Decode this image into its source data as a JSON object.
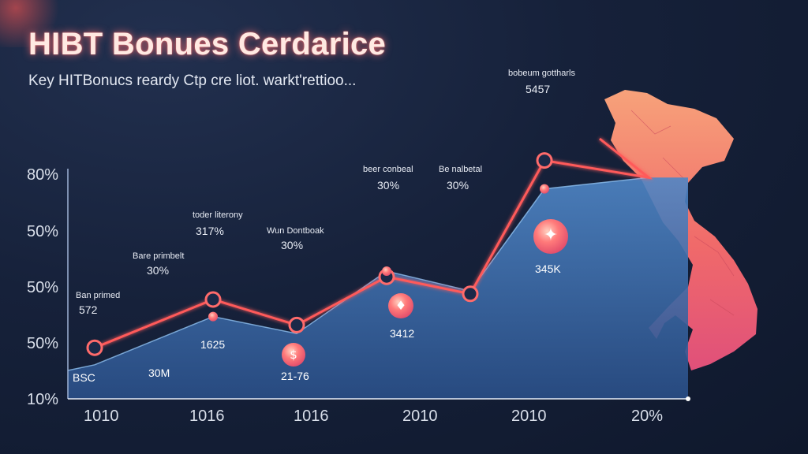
{
  "header": {
    "title": "HIBT Bonues Cerdarice",
    "subtitle": "Key HITBonucs reardy Ctp cre liot. warkt'rettioo..."
  },
  "colors": {
    "background": "#16213a",
    "area_fill": "#3d6fb0",
    "line": "#ff5a5a",
    "marker": "#ff7a7a",
    "map": "#f26d6d"
  },
  "icons": [
    "dollar-icon",
    "piggy-icon",
    "shield-icon",
    "map-of-vietnam-icon"
  ],
  "chart_data": {
    "type": "area",
    "x_tick_labels": [
      "1010",
      "1016",
      "1016",
      "2010",
      "2010",
      "20%"
    ],
    "y_tick_labels": [
      "80%",
      "50%",
      "50%",
      "50%",
      "10%"
    ],
    "grid": false,
    "area_series": {
      "values": [
        10,
        12,
        29,
        23,
        45,
        38,
        74,
        78
      ]
    },
    "line_series": {
      "values": [
        10,
        18,
        35,
        26,
        43,
        37,
        84,
        78
      ]
    },
    "annotations": [
      {
        "name": "Ban primed",
        "value": "572"
      },
      {
        "name": "Bare primbelt",
        "value": "30%"
      },
      {
        "name": "toder literony",
        "value": "317%"
      },
      {
        "name": "Wun Dontboak",
        "value": "30%"
      },
      {
        "name": "beer conbeal",
        "value": "30%"
      },
      {
        "name": "Be nalbetal",
        "value": "30%"
      },
      {
        "name": "bobeum gottharls",
        "value": "5457"
      }
    ],
    "point_labels": [
      "BSC",
      "30M",
      "1625",
      "21-76",
      "3412",
      "345K"
    ]
  }
}
